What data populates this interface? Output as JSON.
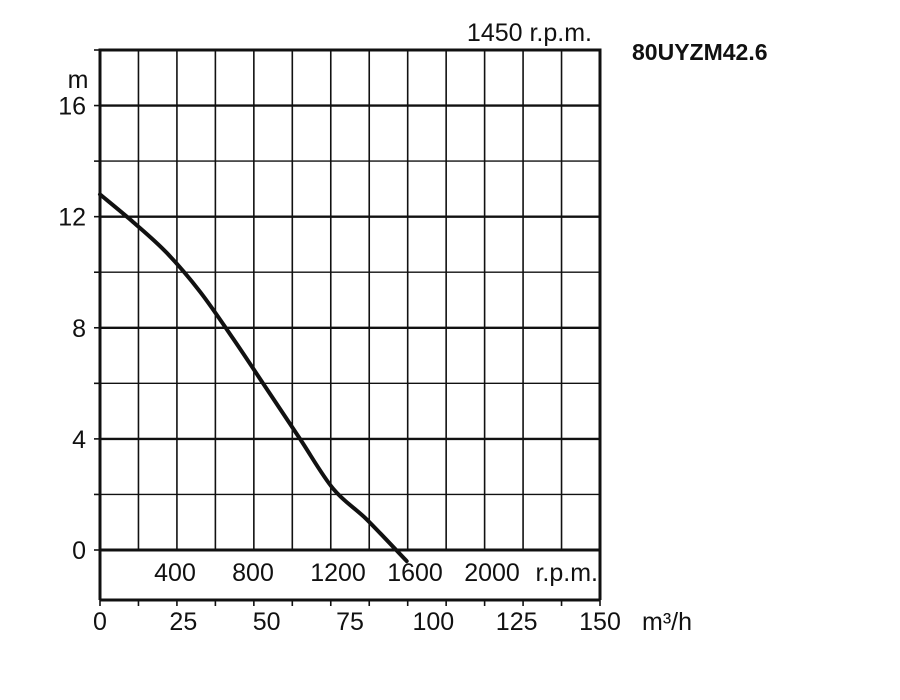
{
  "chart_data": {
    "type": "line",
    "model": "80UYZM42.6",
    "speed_label": "1450 r.p.m.",
    "ylabel": "m",
    "ylim": [
      0,
      18
    ],
    "yticks": [
      0,
      4,
      8,
      12,
      16
    ],
    "xlabel": "m³/h",
    "xlim": [
      0,
      150
    ],
    "xticks": [
      0,
      25,
      50,
      75,
      100,
      125,
      150
    ],
    "grid": true,
    "secondary_axis": {
      "ticks": [
        400,
        800,
        1200,
        1600,
        2000
      ],
      "unit": "r.p.m."
    },
    "series": [
      {
        "x": [
          0,
          10,
          20,
          30,
          40,
          50,
          60,
          70,
          80,
          92
        ],
        "y": [
          12.8,
          11.8,
          10.7,
          9.3,
          7.6,
          5.8,
          4.0,
          2.2,
          1.1,
          -0.4
        ]
      }
    ]
  }
}
